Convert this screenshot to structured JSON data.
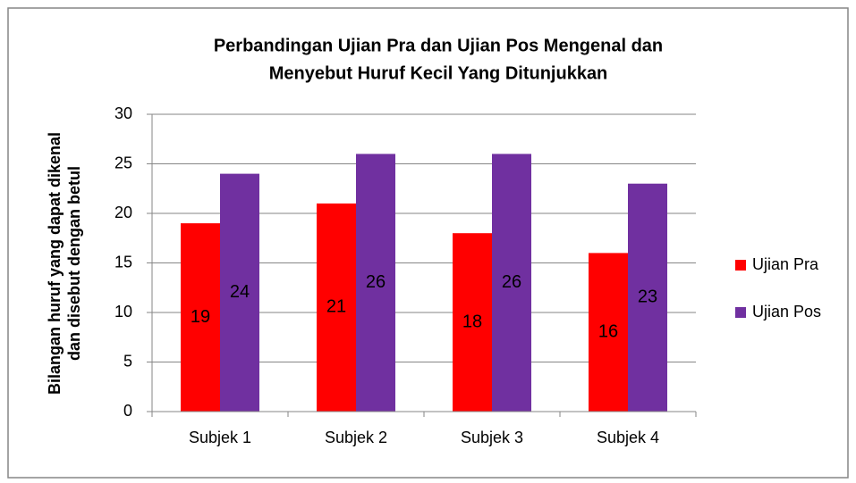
{
  "chart_data": {
    "type": "bar",
    "title": [
      "Perbandingan Ujian Pra dan Ujian Pos Mengenal dan",
      "Menyebut Huruf Kecil Yang Ditunjukkan"
    ],
    "y_label": [
      "Bilangan huruf yang dapat dikenal",
      "dan disebut dengan betul"
    ],
    "categories": [
      "Subjek 1",
      "Subjek 2",
      "Subjek 3",
      "Subjek 4"
    ],
    "series": [
      {
        "name": "Ujian Pra",
        "color": "#ff0000",
        "values": [
          19,
          21,
          18,
          16
        ]
      },
      {
        "name": "Ujian Pos",
        "color": "#7030a0",
        "values": [
          24,
          26,
          26,
          23
        ]
      }
    ],
    "ylim": [
      0,
      30
    ],
    "yticks": [
      0,
      5,
      10,
      15,
      20,
      25,
      30
    ],
    "grid": true,
    "legend": "right"
  }
}
